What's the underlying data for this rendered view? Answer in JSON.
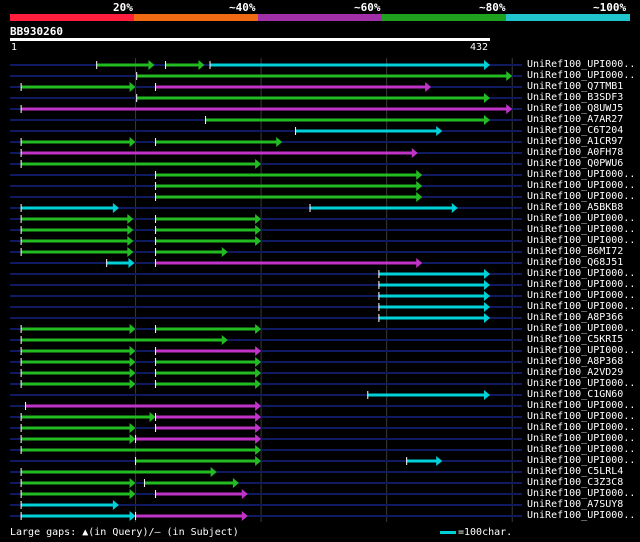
{
  "header": {
    "percent_labels": [
      "20%",
      "~40%",
      "~60%",
      "~80%",
      "~100%"
    ],
    "legend_colors": [
      "#ff1f3d",
      "#ef6a12",
      "#a02fa8",
      "#1fa21f",
      "#1fc4cc"
    ]
  },
  "query": {
    "title": "BB930260",
    "start_label": "1",
    "end_label": "432",
    "length": 432
  },
  "colors": {
    "green": "#22bb22",
    "cyan": "#00d0d8",
    "magenta": "#c033c8",
    "gap": "#1f8a1f",
    "row_line": "#101a60",
    "grid": "#3a3a3a"
  },
  "hits": [
    {
      "label": "UniRef100_UPI000..",
      "segs": [
        [
          78,
          130,
          "g"
        ],
        [
          140,
          175,
          "g"
        ],
        [
          180,
          432,
          "c"
        ]
      ]
    },
    {
      "label": "UniRef100_UPI000..",
      "segs": [
        [
          114,
          452,
          "g"
        ]
      ]
    },
    {
      "label": "UniRef100_Q7TMB1",
      "segs": [
        [
          10,
          113,
          "g"
        ],
        [
          131,
          379,
          "m"
        ]
      ]
    },
    {
      "label": "UniRef100_B3SDF3",
      "segs": [
        [
          114,
          432,
          "g"
        ]
      ]
    },
    {
      "label": "UniRef100_Q8UWJ5",
      "segs": [
        [
          10,
          452,
          "m"
        ]
      ]
    },
    {
      "label": "UniRef100_A7AR27",
      "segs": [
        [
          176,
          432,
          "g"
        ]
      ]
    },
    {
      "label": "UniRef100_C6T204",
      "segs": [
        [
          257,
          389,
          "c"
        ]
      ]
    },
    {
      "label": "UniRef100_A1CR97",
      "segs": [
        [
          10,
          113,
          "g"
        ],
        [
          131,
          245,
          "g"
        ]
      ]
    },
    {
      "label": "UniRef100_A0FH78",
      "segs": [
        [
          10,
          367,
          "m"
        ]
      ]
    },
    {
      "label": "UniRef100_Q0PWU6",
      "segs": [
        [
          10,
          226,
          "g"
        ]
      ]
    },
    {
      "label": "UniRef100_UPI000..",
      "segs": [
        [
          131,
          371,
          "g"
        ]
      ]
    },
    {
      "label": "UniRef100_UPI000..",
      "segs": [
        [
          131,
          371,
          "g"
        ]
      ]
    },
    {
      "label": "UniRef100_UPI000..",
      "segs": [
        [
          131,
          371,
          "g"
        ]
      ]
    },
    {
      "label": "UniRef100_A5BKB8",
      "segs": [
        [
          10,
          98,
          "c"
        ],
        [
          270,
          403,
          "c"
        ]
      ]
    },
    {
      "label": "UniRef100_UPI000..",
      "segs": [
        [
          10,
          111,
          "g"
        ],
        [
          131,
          226,
          "g"
        ]
      ]
    },
    {
      "label": "UniRef100_UPI000..",
      "segs": [
        [
          10,
          111,
          "g"
        ],
        [
          131,
          226,
          "g"
        ]
      ]
    },
    {
      "label": "UniRef100_UPI000..",
      "segs": [
        [
          10,
          111,
          "g"
        ],
        [
          131,
          226,
          "g"
        ]
      ]
    },
    {
      "label": "UniRef100_B6MI72",
      "segs": [
        [
          10,
          111,
          "g"
        ],
        [
          131,
          196,
          "g"
        ]
      ]
    },
    {
      "label": "UniRef100_Q68J51",
      "segs": [
        [
          87,
          112,
          "c"
        ],
        [
          131,
          371,
          "m"
        ]
      ]
    },
    {
      "label": "UniRef100_UPI000..",
      "segs": [
        [
          332,
          432,
          "c"
        ]
      ]
    },
    {
      "label": "UniRef100_UPI000..",
      "segs": [
        [
          332,
          432,
          "c"
        ]
      ]
    },
    {
      "label": "UniRef100_UPI000..",
      "segs": [
        [
          332,
          432,
          "c"
        ]
      ]
    },
    {
      "label": "UniRef100_UPI000..",
      "segs": [
        [
          332,
          432,
          "c"
        ]
      ]
    },
    {
      "label": "UniRef100_A8P366",
      "segs": [
        [
          332,
          432,
          "c"
        ]
      ]
    },
    {
      "label": "UniRef100_UPI000..",
      "segs": [
        [
          10,
          113,
          "g"
        ],
        [
          131,
          226,
          "g"
        ]
      ]
    },
    {
      "label": "UniRef100_C5KRI5",
      "segs": [
        [
          10,
          196,
          "g"
        ]
      ]
    },
    {
      "label": "UniRef100_UPI000..",
      "segs": [
        [
          10,
          113,
          "g"
        ],
        [
          131,
          226,
          "m"
        ]
      ]
    },
    {
      "label": "UniRef100_A8P368",
      "segs": [
        [
          10,
          113,
          "g"
        ],
        [
          131,
          226,
          "g"
        ]
      ]
    },
    {
      "label": "UniRef100_A2VD29",
      "segs": [
        [
          10,
          113,
          "g"
        ],
        [
          131,
          226,
          "g"
        ]
      ]
    },
    {
      "label": "UniRef100_UPI000..",
      "segs": [
        [
          10,
          113,
          "g"
        ],
        [
          131,
          226,
          "g"
        ]
      ]
    },
    {
      "label": "UniRef100_C1GN60",
      "segs": [
        [
          322,
          432,
          "c"
        ]
      ]
    },
    {
      "label": "UniRef100_UPI000..",
      "segs": [
        [
          14,
          226,
          "m"
        ]
      ]
    },
    {
      "label": "UniRef100_UPI000..",
      "segs": [
        [
          10,
          131,
          "g"
        ],
        [
          131,
          226,
          "m"
        ]
      ]
    },
    {
      "label": "UniRef100_UPI000..",
      "segs": [
        [
          10,
          113,
          "g"
        ],
        [
          131,
          226,
          "m"
        ]
      ]
    },
    {
      "label": "UniRef100_UPI000..",
      "segs": [
        [
          10,
          113,
          "g"
        ],
        [
          113,
          226,
          "m"
        ]
      ]
    },
    {
      "label": "UniRef100_UPI000..",
      "segs": [
        [
          10,
          226,
          "g"
        ]
      ]
    },
    {
      "label": "UniRef100_UPI000..",
      "segs": [
        [
          113,
          226,
          "g"
        ],
        [
          357,
          389,
          "c"
        ]
      ]
    },
    {
      "label": "UniRef100_C5LRL4",
      "segs": [
        [
          10,
          186,
          "g"
        ]
      ]
    },
    {
      "label": "UniRef100_C3Z3C8",
      "segs": [
        [
          10,
          113,
          "g"
        ],
        [
          121,
          206,
          "g"
        ]
      ]
    },
    {
      "label": "UniRef100_UPI000..",
      "segs": [
        [
          10,
          113,
          "g"
        ],
        [
          131,
          214,
          "m"
        ]
      ]
    },
    {
      "label": "UniRef100_A7SUY8",
      "segs": [
        [
          10,
          98,
          "c"
        ]
      ]
    },
    {
      "label": "UniRef100_UPI000..",
      "segs": [
        [
          10,
          113,
          "c"
        ],
        [
          113,
          214,
          "m"
        ]
      ]
    }
  ],
  "footer": {
    "gaps_text": "Large gaps: ▲(in Query)/– (in Subject)",
    "scale_text": "=100char."
  }
}
